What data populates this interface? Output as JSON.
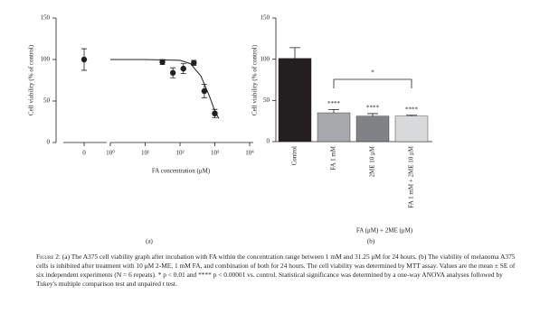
{
  "chart_data": [
    {
      "type": "scatter",
      "panel": "(a)",
      "y_label": "Cell viability (% of control)",
      "x_label": "FA concentration (μM)",
      "x": [
        0,
        31.25,
        62.5,
        125,
        250,
        500,
        1000
      ],
      "values": [
        100,
        97,
        84,
        89,
        96,
        62,
        35
      ],
      "errors": [
        13,
        3,
        6,
        6,
        3,
        8,
        5
      ],
      "color": "#231f20",
      "fit": {
        "x": [
          1,
          10,
          100,
          200,
          400,
          700,
          1000,
          1300
        ],
        "values": [
          100,
          100,
          99,
          95,
          80,
          56,
          38,
          29
        ]
      },
      "xscale": "log",
      "xlim": [
        1,
        10000
      ],
      "xticks": [
        0,
        {
          "value": 1,
          "label": "10⁰"
        },
        {
          "value": 10,
          "label": "10¹"
        },
        {
          "value": 100,
          "label": "10²"
        },
        {
          "value": 1000,
          "label": "10³"
        },
        {
          "value": 10000,
          "label": "10⁴"
        }
      ],
      "ylim": [
        0,
        150
      ],
      "yticks": [
        0,
        50,
        100,
        150
      ]
    },
    {
      "type": "bar",
      "panel": "(b)",
      "y_label": "Cell viability (% of control)",
      "x_label": "FA (μM) + 2ME (μM)",
      "categories": [
        "Control",
        "FA 1 mM",
        "2ME 10 μM",
        "FA 1 mM + 2ME 10 μM"
      ],
      "values": [
        101,
        35,
        31,
        31
      ],
      "errors": [
        13,
        4,
        3,
        1
      ],
      "colors": [
        "#231f20",
        "#a7a9ac",
        "#808285",
        "#d9dadb"
      ],
      "significance": [
        null,
        "****",
        "****",
        "****"
      ],
      "bracket_label": "*",
      "ylim": [
        0,
        150
      ],
      "yticks": [
        0,
        50,
        100,
        150
      ]
    }
  ],
  "caption": {
    "label": "Figure 2:",
    "text": "(a) The A375 cell viability graph after incubation with FA within the concentration range between 1 mM and 31.25 μM for 24 hours. (b) The viability of melanoma A375 cells is inhibited after treatment with 10 μM 2-ME, 1 mM FA, and combination of both for 24 hours. The cell viability was determined by MTT assay. Values are the mean ± SE of six independent experiments (N = 6 repeats). * p < 0.01 and **** p < 0.00001 vs. control. Statistical significance was determined by a one-way ANOVA analyses followed by Tukey's multiple comparison test and unpaired t test."
  }
}
